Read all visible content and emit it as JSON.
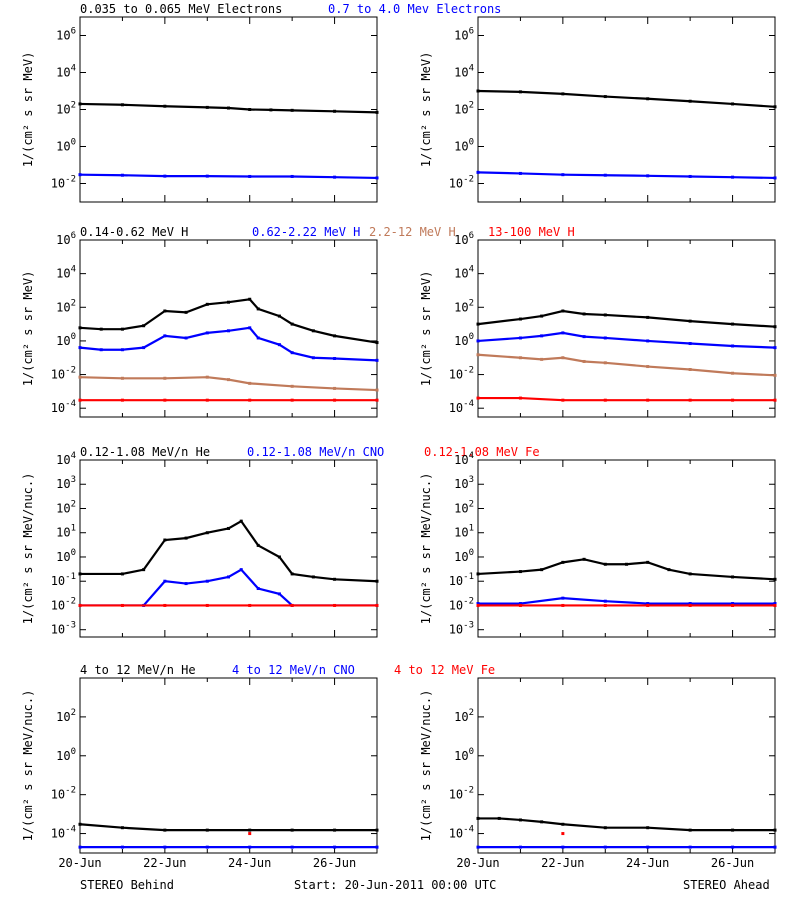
{
  "figure": {
    "footer_left": "STEREO Behind",
    "footer_center": "Start: 20-Jun-2011 00:00 UTC",
    "footer_right": "STEREO Ahead",
    "x_tick_labels": [
      "20-Jun",
      "22-Jun",
      "24-Jun",
      "26-Jun"
    ]
  },
  "rows": [
    {
      "legend": [
        {
          "text": "0.035 to 0.065 MeV Electrons",
          "color": "#000000"
        },
        {
          "text": "0.7 to 4.0 Mev Electrons",
          "color": "#0000ff"
        }
      ],
      "ylabel": "1/(cm² s sr MeV)"
    },
    {
      "legend": [
        {
          "text": "0.14-0.62 MeV H",
          "color": "#000000"
        },
        {
          "text": "0.62-2.22 MeV H",
          "color": "#0000ff"
        },
        {
          "text": "2.2-12 MeV H",
          "color": "#c07a5a"
        },
        {
          "text": "13-100 MeV H",
          "color": "#ff0000"
        }
      ],
      "ylabel": "1/(cm² s sr MeV)"
    },
    {
      "legend": [
        {
          "text": "0.12-1.08 MeV/n He",
          "color": "#000000"
        },
        {
          "text": "0.12-1.08 MeV/n CNO",
          "color": "#0000ff"
        },
        {
          "text": "0.12-1.08 MeV Fe",
          "color": "#ff0000"
        }
      ],
      "ylabel": "1/(cm² s sr MeV/nuc.)"
    },
    {
      "legend": [
        {
          "text": "4 to 12 MeV/n He",
          "color": "#000000"
        },
        {
          "text": "4 to 12 MeV/n CNO",
          "color": "#0000ff"
        },
        {
          "text": "4 to 12 MeV Fe",
          "color": "#ff0000"
        }
      ],
      "ylabel": "1/(cm² s sr MeV/nuc.)"
    }
  ],
  "chart_data": [
    {
      "type": "scatter",
      "panel": "electrons-behind",
      "xlim": [
        0,
        7
      ],
      "yscale": "log",
      "ylim": [
        0.001,
        10000000.0
      ],
      "y_tick_labels": [
        "10^6",
        "10^4",
        "10^2",
        "10^0",
        "10^-2"
      ],
      "series": [
        {
          "name": "0.035 to 0.065 MeV Electrons",
          "color": "#000000",
          "x": [
            0,
            1,
            2,
            3,
            3.5,
            4,
            4.5,
            5,
            6,
            7
          ],
          "y": [
            200,
            180,
            150,
            130,
            120,
            100,
            95,
            90,
            80,
            70
          ]
        },
        {
          "name": "0.7 to 4.0 Mev Electrons",
          "color": "#0000ff",
          "x": [
            0,
            1,
            2,
            3,
            4,
            5,
            6,
            7
          ],
          "y": [
            0.03,
            0.028,
            0.025,
            0.025,
            0.024,
            0.024,
            0.022,
            0.02
          ]
        }
      ]
    },
    {
      "type": "scatter",
      "panel": "electrons-ahead",
      "xlim": [
        0,
        7
      ],
      "yscale": "log",
      "ylim": [
        0.001,
        10000000.0
      ],
      "y_tick_labels": [
        "10^6",
        "10^4",
        "10^2",
        "10^0",
        "10^-2"
      ],
      "series": [
        {
          "name": "0.035 to 0.065 MeV Electrons",
          "color": "#000000",
          "x": [
            0,
            1,
            2,
            3,
            4,
            5,
            6,
            7
          ],
          "y": [
            1000,
            900,
            700,
            500,
            380,
            280,
            200,
            140
          ]
        },
        {
          "name": "0.7 to 4.0 Mev Electrons",
          "color": "#0000ff",
          "x": [
            0,
            1,
            2,
            3,
            4,
            5,
            6,
            7
          ],
          "y": [
            0.04,
            0.035,
            0.03,
            0.028,
            0.026,
            0.024,
            0.022,
            0.02
          ]
        }
      ]
    },
    {
      "type": "scatter",
      "panel": "protons-behind",
      "xlim": [
        0,
        7
      ],
      "yscale": "log",
      "ylim": [
        3e-05,
        1000000.0
      ],
      "y_tick_labels": [
        "10^6",
        "10^4",
        "10^2",
        "10^0",
        "10^-2",
        "10^-4"
      ],
      "series": [
        {
          "name": "0.14-0.62 MeV H",
          "color": "#000000",
          "x": [
            0,
            0.5,
            1,
            1.5,
            2,
            2.5,
            3,
            3.5,
            4,
            4.2,
            4.7,
            5,
            5.5,
            6,
            7
          ],
          "y": [
            6,
            5,
            5,
            8,
            60,
            50,
            150,
            200,
            300,
            80,
            30,
            10,
            4,
            2,
            0.8
          ]
        },
        {
          "name": "0.62-2.22 MeV H",
          "color": "#0000ff",
          "x": [
            0,
            0.5,
            1,
            1.5,
            2,
            2.5,
            3,
            3.5,
            4,
            4.2,
            4.7,
            5,
            5.5,
            6,
            7
          ],
          "y": [
            0.4,
            0.3,
            0.3,
            0.4,
            2,
            1.5,
            3,
            4,
            6,
            1.5,
            0.6,
            0.2,
            0.1,
            0.09,
            0.07
          ]
        },
        {
          "name": "2.2-12 MeV H",
          "color": "#c07a5a",
          "x": [
            0,
            1,
            2,
            3,
            3.5,
            4,
            5,
            6,
            7
          ],
          "y": [
            0.007,
            0.006,
            0.006,
            0.007,
            0.005,
            0.003,
            0.002,
            0.0015,
            0.0012
          ]
        },
        {
          "name": "13-100 MeV H",
          "color": "#ff0000",
          "x": [
            0,
            1,
            2,
            3,
            4,
            5,
            6,
            7
          ],
          "y": [
            0.0003,
            0.0003,
            0.0003,
            0.0003,
            0.0003,
            0.0003,
            0.0003,
            0.0003
          ]
        }
      ]
    },
    {
      "type": "scatter",
      "panel": "protons-ahead",
      "xlim": [
        0,
        7
      ],
      "yscale": "log",
      "ylim": [
        3e-05,
        1000000.0
      ],
      "y_tick_labels": [
        "10^6",
        "10^4",
        "10^2",
        "10^0",
        "10^-2",
        "10^-4"
      ],
      "series": [
        {
          "name": "0.14-0.62 MeV H",
          "color": "#000000",
          "x": [
            0,
            1,
            1.5,
            2,
            2.5,
            3,
            4,
            5,
            6,
            7
          ],
          "y": [
            10,
            20,
            30,
            60,
            40,
            35,
            25,
            15,
            10,
            7
          ]
        },
        {
          "name": "0.62-2.22 MeV H",
          "color": "#0000ff",
          "x": [
            0,
            1,
            1.5,
            2,
            2.5,
            3,
            4,
            5,
            6,
            7
          ],
          "y": [
            1,
            1.5,
            2,
            3,
            1.8,
            1.5,
            1,
            0.7,
            0.5,
            0.4
          ]
        },
        {
          "name": "2.2-12 MeV H",
          "color": "#c07a5a",
          "x": [
            0,
            1,
            1.5,
            2,
            2.5,
            3,
            4,
            5,
            6,
            7
          ],
          "y": [
            0.15,
            0.1,
            0.08,
            0.1,
            0.06,
            0.05,
            0.03,
            0.02,
            0.012,
            0.009
          ]
        },
        {
          "name": "13-100 MeV H",
          "color": "#ff0000",
          "x": [
            0,
            1,
            2,
            3,
            4,
            5,
            6,
            7
          ],
          "y": [
            0.0004,
            0.0004,
            0.0003,
            0.0003,
            0.0003,
            0.0003,
            0.0003,
            0.0003
          ]
        }
      ]
    },
    {
      "type": "scatter",
      "panel": "heavy-ions-low-behind",
      "xlim": [
        0,
        7
      ],
      "yscale": "log",
      "ylim": [
        0.0005,
        10000.0
      ],
      "y_tick_labels": [
        "10^4",
        "10^3",
        "10^2",
        "10^1",
        "10^0",
        "10^-1",
        "10^-2",
        "10^-3"
      ],
      "series": [
        {
          "name": "0.12-1.08 MeV/n He",
          "color": "#000000",
          "x": [
            0,
            1,
            1.5,
            2,
            2.5,
            3,
            3.5,
            3.8,
            4.2,
            4.7,
            5,
            5.5,
            6,
            7
          ],
          "y": [
            0.2,
            0.2,
            0.3,
            5,
            6,
            10,
            15,
            30,
            3,
            1,
            0.2,
            0.15,
            0.12,
            0.1
          ]
        },
        {
          "name": "0.12-1.08 MeV/n CNO",
          "color": "#0000ff",
          "x": [
            0,
            1.5,
            2,
            2.5,
            3,
            3.5,
            3.8,
            4.2,
            4.7,
            5,
            7
          ],
          "y": [
            0.01,
            0.01,
            0.1,
            0.08,
            0.1,
            0.15,
            0.3,
            0.05,
            0.03,
            0.01,
            0.01
          ]
        },
        {
          "name": "0.12-1.08 MeV Fe",
          "color": "#ff0000",
          "x": [
            0,
            1,
            2,
            3,
            4,
            5,
            6,
            7
          ],
          "y": [
            0.01,
            0.01,
            0.01,
            0.01,
            0.01,
            0.01,
            0.01,
            0.01
          ]
        }
      ]
    },
    {
      "type": "scatter",
      "panel": "heavy-ions-low-ahead",
      "xlim": [
        0,
        7
      ],
      "yscale": "log",
      "ylim": [
        0.0005,
        10000.0
      ],
      "y_tick_labels": [
        "10^4",
        "10^3",
        "10^2",
        "10^1",
        "10^0",
        "10^-1",
        "10^-2",
        "10^-3"
      ],
      "series": [
        {
          "name": "0.12-1.08 MeV/n He",
          "color": "#000000",
          "x": [
            0,
            1,
            1.5,
            2,
            2.5,
            3,
            3.5,
            4,
            4.5,
            5,
            6,
            7
          ],
          "y": [
            0.2,
            0.25,
            0.3,
            0.6,
            0.8,
            0.5,
            0.5,
            0.6,
            0.3,
            0.2,
            0.15,
            0.12
          ]
        },
        {
          "name": "0.12-1.08 MeV/n CNO",
          "color": "#0000ff",
          "x": [
            0,
            1,
            2,
            3,
            4,
            5,
            6,
            7
          ],
          "y": [
            0.012,
            0.012,
            0.02,
            0.015,
            0.012,
            0.012,
            0.012,
            0.012
          ]
        },
        {
          "name": "0.12-1.08 MeV Fe",
          "color": "#ff0000",
          "x": [
            0,
            1,
            2,
            3,
            4,
            5,
            6,
            7
          ],
          "y": [
            0.01,
            0.01,
            0.01,
            0.01,
            0.01,
            0.01,
            0.01,
            0.01
          ]
        }
      ]
    },
    {
      "type": "scatter",
      "panel": "heavy-ions-high-behind",
      "xlim": [
        0,
        7
      ],
      "yscale": "log",
      "ylim": [
        1e-05,
        10000.0
      ],
      "y_tick_labels": [
        "10^2",
        "10^0",
        "10^-2",
        "10^-4"
      ],
      "series": [
        {
          "name": "4 to 12 MeV/n He",
          "color": "#000000",
          "x": [
            0,
            1,
            2,
            3,
            4,
            5,
            6,
            7
          ],
          "y": [
            0.0003,
            0.0002,
            0.00015,
            0.00015,
            0.00015,
            0.00015,
            0.00015,
            0.00015
          ]
        },
        {
          "name": "4 to 12 MeV/n CNO",
          "color": "#0000ff",
          "x": [
            0,
            1,
            2,
            3,
            4,
            5,
            6,
            7
          ],
          "y": [
            2e-05,
            2e-05,
            2e-05,
            2e-05,
            2e-05,
            2e-05,
            2e-05,
            2e-05
          ]
        },
        {
          "name": "4 to 12 MeV Fe",
          "color": "#ff0000",
          "x": [
            4
          ],
          "y": [
            0.0001
          ]
        }
      ]
    },
    {
      "type": "scatter",
      "panel": "heavy-ions-high-ahead",
      "xlim": [
        0,
        7
      ],
      "yscale": "log",
      "ylim": [
        1e-05,
        10000.0
      ],
      "y_tick_labels": [
        "10^2",
        "10^0",
        "10^-2",
        "10^-4"
      ],
      "series": [
        {
          "name": "4 to 12 MeV/n He",
          "color": "#000000",
          "x": [
            0,
            0.5,
            1,
            1.5,
            2,
            3,
            4,
            5,
            6,
            7
          ],
          "y": [
            0.0006,
            0.0006,
            0.0005,
            0.0004,
            0.0003,
            0.0002,
            0.0002,
            0.00015,
            0.00015,
            0.00015
          ]
        },
        {
          "name": "4 to 12 MeV/n CNO",
          "color": "#0000ff",
          "x": [
            0,
            1,
            2,
            3,
            4,
            5,
            6,
            7
          ],
          "y": [
            2e-05,
            2e-05,
            2e-05,
            2e-05,
            2e-05,
            2e-05,
            2e-05,
            2e-05
          ]
        },
        {
          "name": "4 to 12 MeV Fe",
          "color": "#ff0000",
          "x": [
            2
          ],
          "y": [
            0.0001
          ]
        }
      ]
    }
  ]
}
